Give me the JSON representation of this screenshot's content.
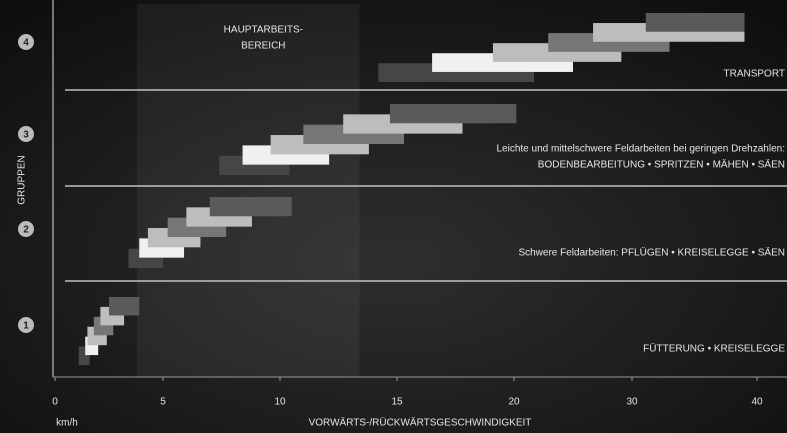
{
  "chart_data": {
    "type": "range-bar",
    "x_label": "VORWÄRTS-/RÜCKWÄRTSGESCHWINDIGKEIT",
    "x_unit": "km/h",
    "y_label": "GRUPPEN",
    "xlim": [
      0,
      40
    ],
    "xticks": [
      0,
      5,
      10,
      15,
      20,
      30,
      40
    ],
    "x_scale": "piecewise",
    "colors": [
      "#464646",
      "#f0f0f0",
      "#bdbdbd",
      "#767676",
      "#bdbdbd",
      "#5a5a5a"
    ],
    "main_area": {
      "label": [
        "HAUPTARBEITS-",
        "BEREICH"
      ],
      "start": 3.8,
      "end": 13.4
    },
    "groups": [
      {
        "name": "1",
        "annotation": [
          "FÜTTERUNG • KREISELEGGE"
        ],
        "starts": [
          1.1,
          1.4,
          1.5,
          1.8,
          2.1,
          2.5
        ],
        "ends": [
          1.6,
          2.0,
          2.4,
          2.7,
          3.2,
          3.9
        ]
      },
      {
        "name": "2",
        "annotation": [
          "Schwere Feldarbeiten: PFLÜGEN • KREISELEGGE • SÄEN"
        ],
        "starts": [
          3.4,
          3.9,
          4.3,
          5.2,
          6.0,
          7.0
        ],
        "ends": [
          5.0,
          5.9,
          6.6,
          7.7,
          8.8,
          10.5
        ]
      },
      {
        "name": "3",
        "annotation": [
          "Leichte und mittelschwere Feldarbeiten bei geringen Drehzahlen:",
          "BODENBEARBEITUNG • SPRITZEN • MÄHEN • SÄEN"
        ],
        "starts": [
          7.4,
          8.4,
          9.6,
          11.0,
          12.7,
          14.7
        ],
        "ends": [
          10.4,
          12.1,
          13.8,
          15.3,
          17.8,
          20.2
        ]
      },
      {
        "name": "4",
        "annotation": [
          "TRANSPORT"
        ],
        "starts": [
          14.2,
          16.5,
          19.1,
          22.9,
          26.7,
          31.1
        ],
        "ends": [
          21.7,
          25.0,
          29.1,
          33.0,
          39.0,
          39.0
        ]
      }
    ]
  }
}
